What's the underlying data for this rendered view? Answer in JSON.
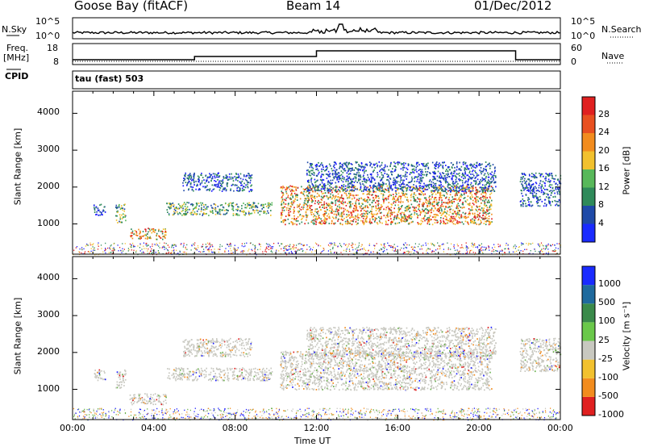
{
  "header": {
    "station": "Goose Bay (fitACF)",
    "beam": "Beam 14",
    "date": "01/Dec/2012"
  },
  "strip": {
    "nsky_label": "N.Sky",
    "nsearch_label": "N.Search",
    "freq_label": "Freq.",
    "freq_unit": "[MHz]",
    "nave_label": "Nave",
    "cpid_label": "CPID",
    "cpid_value": "tau (fast) 503",
    "noise_left_ticks": [
      "10^5",
      "10^0"
    ],
    "noise_right_ticks": [
      "10^5",
      "10^0"
    ],
    "freq_ticks": [
      "18",
      "8"
    ],
    "nave_ticks": [
      "60",
      "0"
    ]
  },
  "colors": {
    "low": "#1a1aff",
    "mid": "#2e7d32",
    "green": "#6ab04c",
    "yellow": "#f2c12e",
    "orange": "#f28c1e",
    "red": "#e02020",
    "grey": "#c8c8c0"
  },
  "chart_data": [
    {
      "type": "heatmap",
      "panel": "power",
      "xlabel": "",
      "ylabel": "Slant Range [km]",
      "xlim": [
        "00:00",
        "24:00"
      ],
      "ylim": [
        180,
        4600
      ],
      "yticks": [
        "1000",
        "2000",
        "3000",
        "4000"
      ],
      "colorbar": {
        "label": "Power [dB]",
        "ticks": [
          "4",
          "8",
          "12",
          "16",
          "20",
          "24",
          "28"
        ],
        "colors": [
          "#1a2bff",
          "#1f4aa8",
          "#2f8a5a",
          "#58b85a",
          "#f2c12e",
          "#f28c1e",
          "#e85020",
          "#e02020"
        ]
      },
      "regions": [
        {
          "t0": 1.0,
          "t1": 1.6,
          "r0": 1250,
          "r1": 1550,
          "power": "low"
        },
        {
          "t0": 2.1,
          "t1": 2.6,
          "r0": 1050,
          "r1": 1550,
          "power": "mid"
        },
        {
          "t0": 2.8,
          "t1": 4.6,
          "r0": 600,
          "r1": 900,
          "power": "high"
        },
        {
          "t0": 4.6,
          "t1": 9.8,
          "r0": 1250,
          "r1": 1600,
          "power": "mid"
        },
        {
          "t0": 5.4,
          "t1": 8.8,
          "r0": 1900,
          "r1": 2400,
          "power": "low"
        },
        {
          "t0": 10.2,
          "t1": 20.6,
          "r0": 1000,
          "r1": 2050,
          "power": "high"
        },
        {
          "t0": 11.5,
          "t1": 20.8,
          "r0": 1900,
          "r1": 2700,
          "power": "low"
        },
        {
          "t0": 22.0,
          "t1": 24.0,
          "r0": 1500,
          "r1": 2400,
          "power": "low"
        }
      ]
    },
    {
      "type": "heatmap",
      "panel": "velocity",
      "xlabel": "Time UT",
      "ylabel": "Slant Range [km]",
      "xlim": [
        "00:00",
        "24:00"
      ],
      "ylim": [
        180,
        4600
      ],
      "yticks": [
        "1000",
        "2000",
        "3000",
        "4000"
      ],
      "xticks": [
        "00:00",
        "04:00",
        "08:00",
        "12:00",
        "16:00",
        "20:00",
        "00:00"
      ],
      "colorbar": {
        "label": "Velocity [m s⁻¹]",
        "ticks": [
          "1000",
          "500",
          "100",
          "25",
          "-25",
          "-100",
          "-500",
          "-1000"
        ],
        "colors": [
          "#1a2bff",
          "#1f6a9e",
          "#3a8a4a",
          "#6ac84a",
          "#c8c8c0",
          "#f2c12e",
          "#f28c1e",
          "#e02020"
        ]
      }
    }
  ]
}
